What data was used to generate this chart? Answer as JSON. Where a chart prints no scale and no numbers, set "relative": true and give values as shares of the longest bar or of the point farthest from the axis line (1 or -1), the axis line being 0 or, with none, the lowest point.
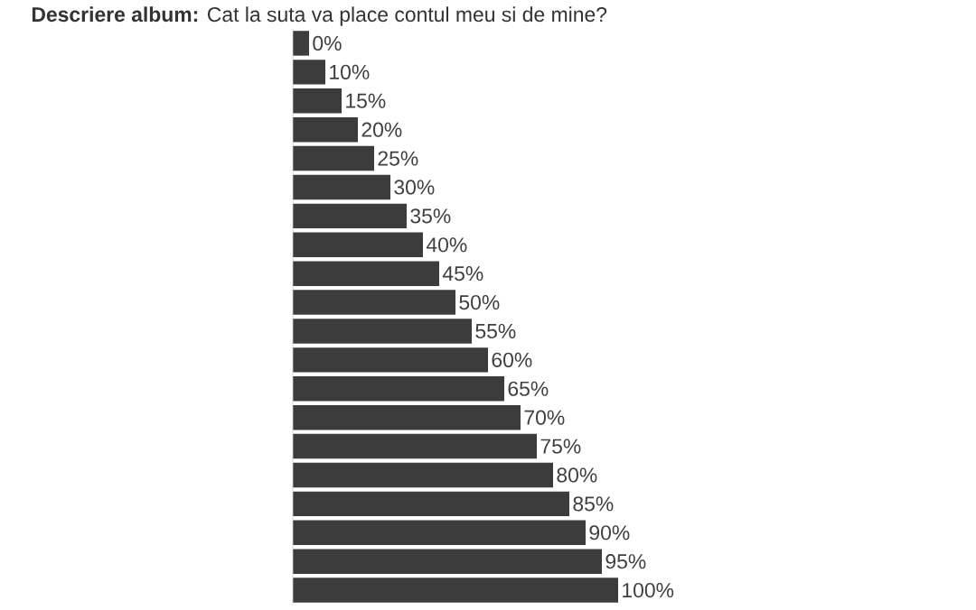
{
  "chart_data": {
    "type": "bar",
    "orientation": "horizontal",
    "relative": true,
    "title": "**Descriere album:** Cat la suta va place contul meu si de mine?",
    "categories": [
      "0%",
      "10%",
      "15%",
      "20%",
      "25%",
      "30%",
      "35%",
      "40%",
      "45%",
      "50%",
      "55%",
      "60%",
      "65%",
      "70%",
      "75%",
      "80%",
      "85%",
      "90%",
      "95%",
      "100%"
    ],
    "values": [
      0.05,
      0.1,
      0.15,
      0.2,
      0.25,
      0.3,
      0.35,
      0.4,
      0.45,
      0.5,
      0.55,
      0.6,
      0.65,
      0.7,
      0.75,
      0.8,
      0.85,
      0.9,
      0.95,
      1.0
    ],
    "color": "#3c3c3c"
  }
}
